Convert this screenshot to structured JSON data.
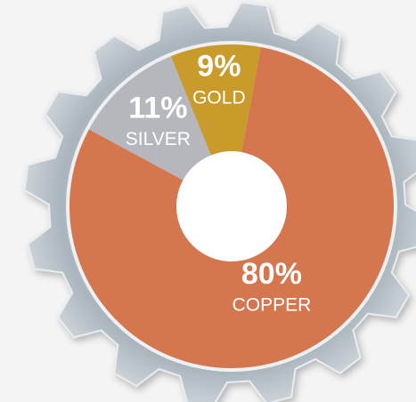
{
  "chart_data": {
    "type": "donut",
    "categories": [
      "GOLD",
      "COPPER",
      "SILVER"
    ],
    "values": [
      9,
      80,
      11
    ],
    "value_labels": [
      "9%",
      "80%",
      "11%"
    ],
    "colors": [
      "#c99b2b",
      "#d4774f",
      "#b5b7bc"
    ]
  }
}
